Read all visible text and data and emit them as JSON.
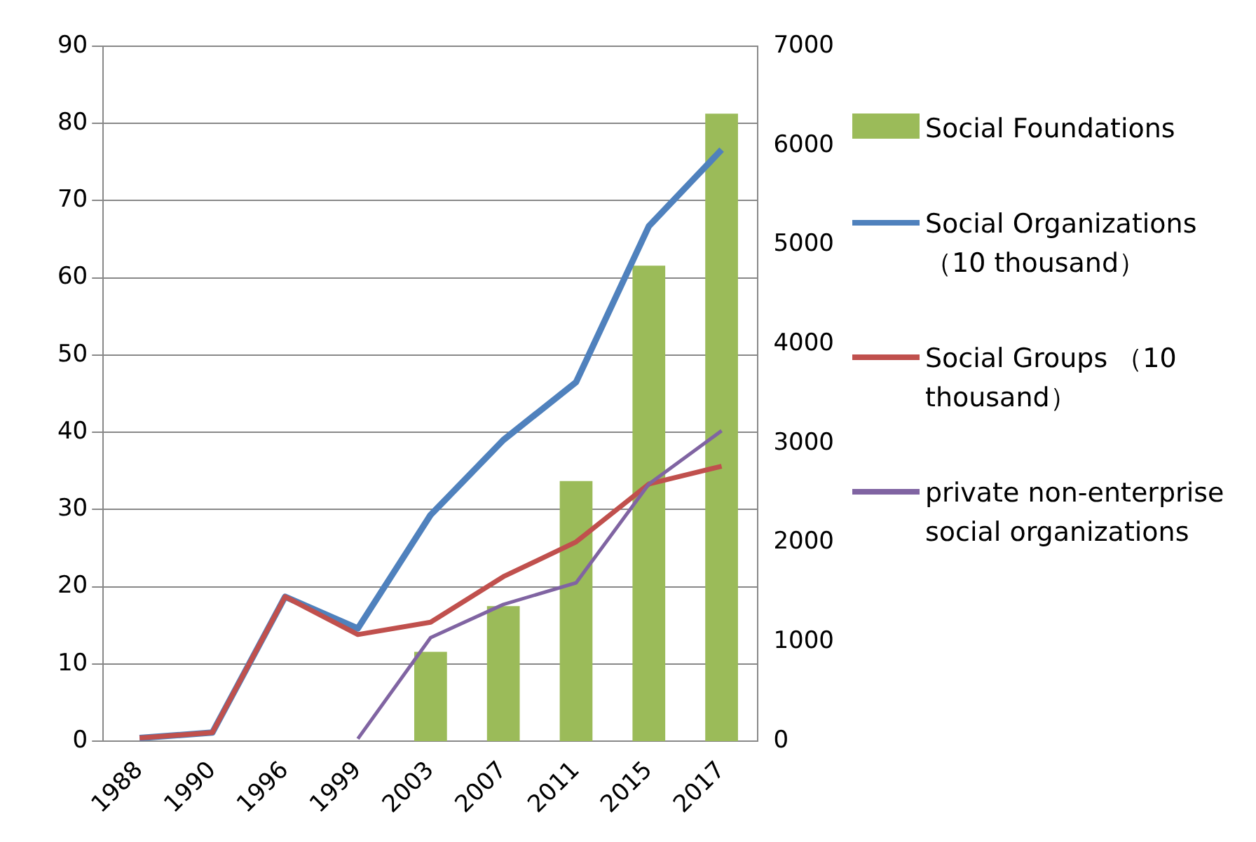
{
  "chart_data": {
    "type": "line",
    "categories": [
      "1988",
      "1990",
      "1996",
      "1999",
      "2003",
      "2007",
      "2011",
      "2015",
      "2017"
    ],
    "series": [
      {
        "name": "Social Foundations",
        "type": "bar",
        "axis": "y2",
        "color": "#9bbb59",
        "values": [
          null,
          null,
          null,
          null,
          900,
          1360,
          2620,
          4790,
          6320
        ]
      },
      {
        "name": "Social Organizations （10 thousand）",
        "color": "#4f81bd",
        "values": [
          0.4,
          1.1,
          18.7,
          14.6,
          29.3,
          39,
          46.5,
          66.7,
          76.6
        ]
      },
      {
        "name": "Social Groups （10 thousand）",
        "color": "#c0504d",
        "values": [
          0.4,
          1.1,
          18.7,
          13.8,
          15.4,
          21.3,
          25.8,
          33.3,
          35.6
        ]
      },
      {
        "name": "private non-enterprise social organizations",
        "color": "#8064a2",
        "values": [
          null,
          null,
          null,
          0.3,
          13.4,
          17.7,
          20.5,
          33.3,
          40.2
        ]
      }
    ],
    "ylim": [
      0,
      90
    ],
    "yticks": [
      0,
      10,
      20,
      30,
      40,
      50,
      60,
      70,
      80,
      90
    ],
    "y2lim": [
      0,
      7000
    ],
    "y2ticks": [
      0,
      1000,
      2000,
      3000,
      4000,
      5000,
      6000,
      7000
    ],
    "grid": "y",
    "legend": "right",
    "marker": "none",
    "line_style": "solid"
  }
}
